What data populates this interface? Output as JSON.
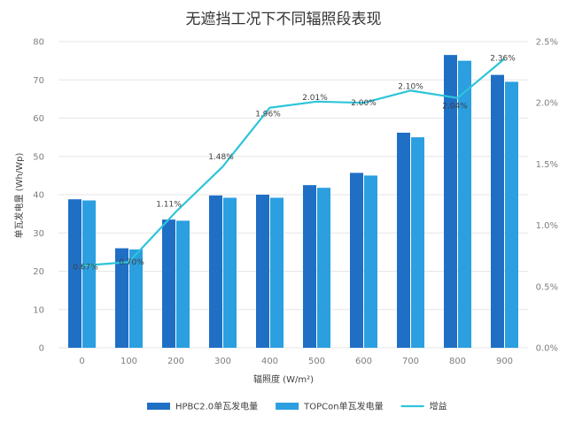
{
  "chart_data": {
    "type": "bar",
    "title": "无遮挡工况下不同辐照段表现",
    "xlabel": "辐照度 (W/m²)",
    "ylabel": "单瓦发电量 (Wh/Wp)",
    "categories": [
      "0",
      "100",
      "200",
      "300",
      "400",
      "500",
      "600",
      "700",
      "800",
      "900"
    ],
    "ylim": [
      0,
      80
    ],
    "yticks": [
      0,
      10,
      20,
      30,
      40,
      50,
      60,
      70,
      80
    ],
    "y2lim": [
      0,
      2.5
    ],
    "y2ticks": [
      "0.0%",
      "0.5%",
      "1.0%",
      "1.5%",
      "2.0%",
      "2.5%"
    ],
    "grid": true,
    "legend_position": "bottom",
    "series": [
      {
        "name": "HPBC2.0单瓦发电量",
        "type": "bar",
        "axis": "left",
        "color": "#1f6fc5",
        "values": [
          38.8,
          26.0,
          33.5,
          39.8,
          40.0,
          42.5,
          45.7,
          56.2,
          76.5,
          71.3
        ]
      },
      {
        "name": "TOPCon单瓦发电量",
        "type": "bar",
        "axis": "left",
        "color": "#2b9fe0",
        "values": [
          38.5,
          25.7,
          33.2,
          39.2,
          39.2,
          41.8,
          45.0,
          55.0,
          75.0,
          69.5
        ]
      },
      {
        "name": "增益",
        "type": "line",
        "axis": "right",
        "color": "#2ec4da",
        "values": [
          0.67,
          0.7,
          1.11,
          1.48,
          1.96,
          2.01,
          2.0,
          2.1,
          2.04,
          2.36
        ],
        "labels": [
          "0.67%",
          "0.70%",
          "1.11%",
          "1.48%",
          "1.96%",
          "2.01%",
          "2.00%",
          "2.10%",
          "2.04%",
          "2.36%"
        ]
      }
    ]
  }
}
